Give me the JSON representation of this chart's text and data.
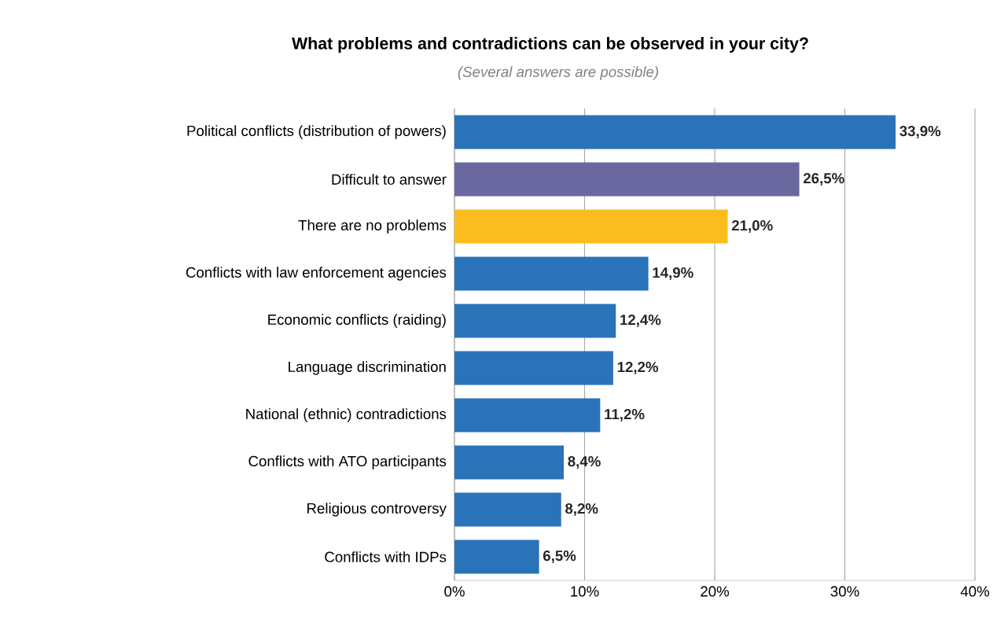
{
  "chart_data": {
    "type": "bar",
    "orientation": "horizontal",
    "title": "What problems and contradictions can be observed in your city?",
    "subtitle": "(Several answers are possible)",
    "categories": [
      "Political conflicts (distribution of powers)",
      "Difficult to answer",
      "There are no problems",
      "Conflicts with law enforcement agencies",
      "Economic conflicts (raiding)",
      "Language discrimination",
      "National (ethnic) contradictions",
      "Conflicts with ATO participants",
      "Religious controversy",
      "Conflicts with IDPs"
    ],
    "values": [
      33.9,
      26.5,
      21.0,
      14.9,
      12.4,
      12.2,
      11.2,
      8.4,
      8.2,
      6.5
    ],
    "value_labels": [
      "33,9%",
      "26,5%",
      "21,0%",
      "14,9%",
      "12,4%",
      "12,2%",
      "11,2%",
      "8,4%",
      "8,2%",
      "6,5%"
    ],
    "colors": [
      "#2a73b9",
      "#6b68a0",
      "#fbbd1e",
      "#2a73b9",
      "#2a73b9",
      "#2a73b9",
      "#2a73b9",
      "#2a73b9",
      "#2a73b9",
      "#2a73b9"
    ],
    "xlim": [
      0,
      40
    ],
    "xticks": [
      {
        "value": 0,
        "label": "0%"
      },
      {
        "value": 10,
        "label": "10%"
      },
      {
        "value": 20,
        "label": "20%"
      },
      {
        "value": 30,
        "label": "30%"
      },
      {
        "value": 40,
        "label": "40%"
      }
    ],
    "grid": "x"
  }
}
